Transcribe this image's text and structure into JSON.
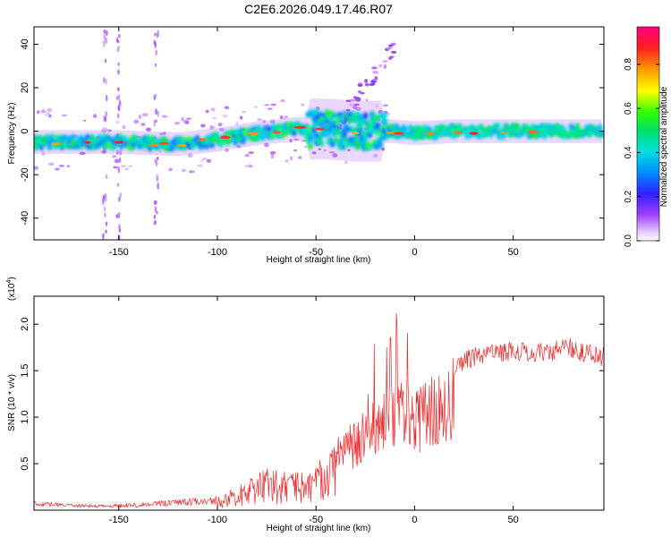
{
  "title": "C2E6.2026.049.17.46.R07",
  "chart_data": [
    {
      "type": "heatmap",
      "xlabel": "Height of straight line (km)",
      "ylabel": "Frequency (Hz)",
      "xlim": [
        -193,
        96
      ],
      "ylim": [
        -50,
        48
      ],
      "xticks": [
        -150,
        -100,
        -50,
        0,
        50
      ],
      "yticks": [
        -40,
        -20,
        0,
        20,
        40
      ],
      "colorbar": {
        "label": "Normalized spectral amplitude",
        "range": [
          0.0,
          0.97
        ],
        "ticks": [
          0.0,
          0.2,
          0.4,
          0.6,
          0.8
        ],
        "tick_labels": [
          "0.0",
          "0.2",
          "0.4",
          "0.6",
          "0.8"
        ],
        "colormap": "rainbow (white-violet-blue-cyan-green-yellow-orange-red-magenta)"
      },
      "ridge": {
        "description": "Main spectral ridge (center frequency vs height)",
        "x": [
          -193,
          -150,
          -120,
          -100,
          -80,
          -60,
          -45,
          -30,
          -20,
          -10,
          0,
          20,
          50,
          96
        ],
        "y": [
          -5,
          -5,
          -6,
          -4,
          -1,
          1,
          1,
          0,
          0,
          0,
          -1,
          0,
          0,
          0
        ]
      }
    },
    {
      "type": "line",
      "xlabel": "Height of straight line (km)",
      "ylabel": "SNR (10 * v/v)",
      "yscale_label": "(x10",
      "yscale_exp": "4",
      "xlim": [
        -193,
        96
      ],
      "ylim": [
        0.0,
        2.3
      ],
      "xticks": [
        -150,
        -100,
        -50,
        0,
        50
      ],
      "yticks": [
        0.5,
        1.0,
        1.5,
        2.0
      ],
      "ytick_labels": [
        "0.5",
        "1.0",
        "1.5",
        "2.0"
      ],
      "color": "#e8292b",
      "envelope": {
        "x": [
          -193,
          -180,
          -160,
          -140,
          -120,
          -100,
          -90,
          -75,
          -60,
          -50,
          -40,
          -30,
          -20,
          -10,
          0,
          10,
          20,
          30,
          40,
          50,
          60,
          70,
          80,
          96
        ],
        "y": [
          0.1,
          0.08,
          0.06,
          0.08,
          0.12,
          0.15,
          0.25,
          0.45,
          0.4,
          0.5,
          0.8,
          1.0,
          1.2,
          1.45,
          1.3,
          1.5,
          1.65,
          1.75,
          1.8,
          1.82,
          1.8,
          1.82,
          1.85,
          1.75
        ]
      }
    }
  ]
}
